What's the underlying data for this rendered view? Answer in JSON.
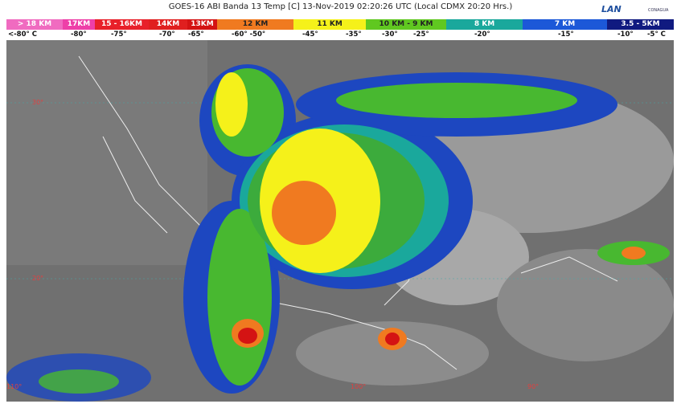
{
  "header": {
    "title": "GOES-16 ABI Banda 13 Temp [C] 13-Nov-2019 02:20:26 UTC (Local CDMX  20:20 Hrs.)",
    "logo_left": "LAN",
    "logo_right": "CONAGUA"
  },
  "legend": {
    "heights": [
      "> 18 KM",
      "17KM",
      "15 - 16KM",
      "14KM",
      "13KM",
      "12 KM",
      "11 KM",
      "10 KM - 9 KM",
      "8 KM",
      "7 KM",
      "3.5 - 5KM"
    ],
    "temperatures": [
      "<-80° C",
      "-80°",
      "-75°",
      "-70°",
      "-65°",
      "-60°  -50°",
      "-45°",
      "-35°",
      "-30°",
      "-25°",
      "-20°",
      "-15°",
      "-10°",
      "-5° C"
    ]
  },
  "map": {
    "lat_labels": [
      "30°",
      "20°"
    ],
    "lon_labels": [
      "110°",
      "100°",
      "90°"
    ]
  }
}
